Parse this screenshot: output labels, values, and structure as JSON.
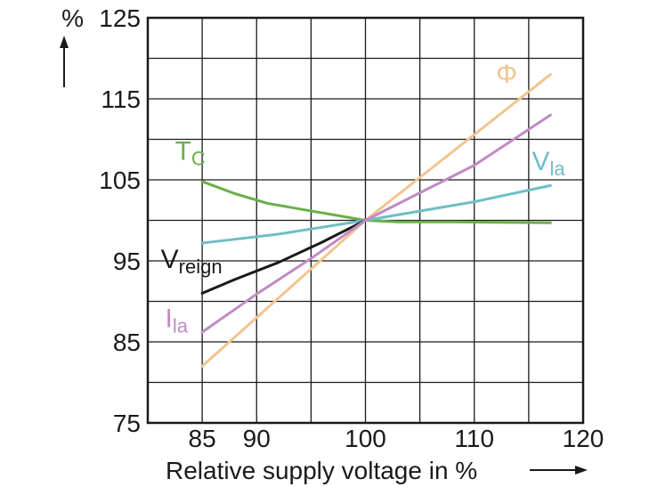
{
  "chart_data": {
    "type": "line",
    "title": "",
    "xlabel": "Relative supply voltage in %",
    "ylabel": "%",
    "xlim": [
      80,
      120
    ],
    "ylim": [
      75,
      125
    ],
    "x_ticks": [
      85,
      90,
      100,
      110,
      120
    ],
    "y_ticks": [
      75,
      85,
      95,
      105,
      115,
      125
    ],
    "x_grid": [
      80,
      85,
      90,
      95,
      100,
      105,
      110,
      115,
      120
    ],
    "y_grid": [
      75,
      80,
      85,
      90,
      95,
      100,
      105,
      110,
      115,
      120,
      125
    ],
    "grid": true,
    "series": [
      {
        "name": "Φ",
        "label_main": "Φ",
        "label_sub": "",
        "color": "#f2c48f",
        "label_at": [
          112,
          117
        ],
        "x": [
          85,
          100,
          117
        ],
        "y": [
          82,
          100,
          118
        ]
      },
      {
        "name": "Tc",
        "label_main": "T",
        "label_sub": "C",
        "color": "#6aaf4b",
        "label_at": [
          82.5,
          107.5
        ],
        "x": [
          85,
          88,
          91,
          94,
          97,
          100,
          103,
          108,
          117
        ],
        "y": [
          104.8,
          103.3,
          102.1,
          101.4,
          100.7,
          100,
          99.8,
          99.8,
          99.7
        ]
      },
      {
        "name": "Vla",
        "label_main": "V",
        "label_sub": "la",
        "color": "#6fbec6",
        "label_at": [
          115.3,
          106.2
        ],
        "x": [
          85,
          92,
          100,
          110,
          117
        ],
        "y": [
          97.2,
          98.3,
          100,
          102.3,
          104.3
        ]
      },
      {
        "name": "Vreign",
        "label_main": "V",
        "label_sub": "reign",
        "color": "#1a1a1a",
        "label_at": [
          81.2,
          94.1
        ],
        "x": [
          85,
          88,
          92,
          96,
          100
        ],
        "y": [
          91,
          92.7,
          94.8,
          97.3,
          100
        ]
      },
      {
        "name": "Ila",
        "label_main": "I",
        "label_sub": "la",
        "color": "#c18bc4",
        "label_at": [
          81.6,
          86.8
        ],
        "x": [
          85,
          90,
          95,
          100,
          110,
          117
        ],
        "y": [
          86.2,
          90.9,
          95.3,
          100,
          106.8,
          113
        ]
      }
    ]
  }
}
